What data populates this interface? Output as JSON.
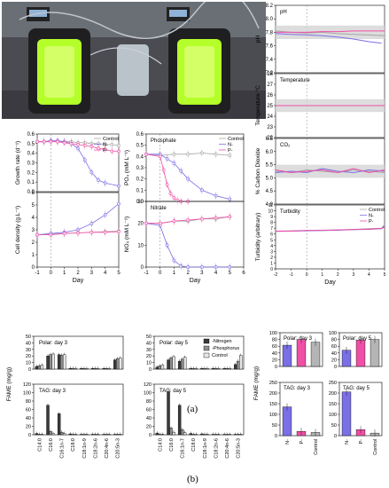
{
  "figure": {
    "caption_a": "(a)",
    "caption_b": "(b)"
  },
  "colors": {
    "control": "#a6a6a6",
    "n": "#7b6fe6",
    "p": "#f04fa6",
    "dark": "#3a3a3a",
    "photo_frame": "#2b2b2b",
    "algae": "#b4ff2a"
  },
  "chart_data": [
    {
      "id": "growth",
      "type": "line",
      "ylabel": "Growth rate (d⁻¹)",
      "xlabel": "",
      "ylim": [
        0.0,
        0.6
      ],
      "yticks": [
        "0.0",
        "0.1",
        "0.2",
        "0.3",
        "0.4",
        "0.5",
        "0.6"
      ],
      "xlim": [
        -1,
        5
      ],
      "xticks": [
        "-1",
        "0",
        "1",
        "2",
        "3",
        "4",
        "5"
      ],
      "legend": [
        "Control",
        "N-",
        "P-"
      ],
      "legend_position": "top-right",
      "series": [
        {
          "name": "Control",
          "x": [
            -1,
            -0.5,
            0,
            0.5,
            1,
            1.5,
            2,
            2.5,
            3,
            3.5,
            4,
            4.5,
            5
          ],
          "y": [
            0.52,
            0.52,
            0.53,
            0.52,
            0.52,
            0.52,
            0.51,
            0.51,
            0.5,
            0.5,
            0.49,
            0.49,
            0.48
          ]
        },
        {
          "name": "N-",
          "x": [
            -1,
            -0.5,
            0,
            0.5,
            1,
            1.5,
            2,
            2.5,
            3,
            3.5,
            4,
            5
          ],
          "y": [
            0.52,
            0.52,
            0.53,
            0.53,
            0.52,
            0.5,
            0.45,
            0.33,
            0.2,
            0.12,
            0.09,
            0.06
          ]
        },
        {
          "name": "P-",
          "x": [
            -1,
            -0.5,
            0,
            0.5,
            1,
            1.5,
            2,
            2.5,
            3,
            3.5,
            4,
            4.5,
            5
          ],
          "y": [
            0.52,
            0.52,
            0.52,
            0.52,
            0.51,
            0.5,
            0.49,
            0.48,
            0.47,
            0.45,
            0.44,
            0.42,
            0.42
          ]
        }
      ]
    },
    {
      "id": "density",
      "type": "line",
      "ylabel": "Cell density (g.L⁻¹)",
      "xlabel": "Day",
      "ylim": [
        0,
        6
      ],
      "yticks": [
        "0",
        "1",
        "2",
        "3",
        "4",
        "5",
        "6"
      ],
      "xlim": [
        -1,
        5
      ],
      "xticks": [
        "-1",
        "0",
        "1",
        "2",
        "3",
        "4",
        "5"
      ],
      "series": [
        {
          "name": "Control",
          "x": [
            -1,
            0,
            1,
            2,
            3,
            4,
            5
          ],
          "y": [
            2.6,
            2.65,
            2.7,
            2.75,
            2.8,
            2.85,
            2.9
          ]
        },
        {
          "name": "N-",
          "x": [
            -1,
            0,
            1,
            2,
            3,
            4,
            5
          ],
          "y": [
            2.6,
            2.7,
            2.8,
            3.0,
            3.5,
            4.2,
            5.1
          ]
        },
        {
          "name": "P-",
          "x": [
            -1,
            0,
            1,
            2,
            3,
            4,
            5
          ],
          "y": [
            2.6,
            2.6,
            2.7,
            2.75,
            2.8,
            2.8,
            2.85
          ]
        }
      ]
    },
    {
      "id": "phosphate",
      "type": "line",
      "ylabel": "PO₄ (mM L⁻¹)",
      "annotation": "Phosphate",
      "ylim": [
        0.0,
        0.6
      ],
      "yticks": [
        "0.0",
        "0.1",
        "0.2",
        "0.3",
        "0.4",
        "0.5",
        "0.6"
      ],
      "xlim": [
        -1,
        6
      ],
      "xticks": [
        "-1",
        "0",
        "1",
        "2",
        "3",
        "4",
        "5",
        "6"
      ],
      "legend": [
        "Control",
        "N-",
        "P-"
      ],
      "legend_position": "top-right",
      "series": [
        {
          "name": "Control",
          "x": [
            -1,
            0,
            1,
            2,
            3,
            4,
            5
          ],
          "y": [
            0.42,
            0.41,
            0.42,
            0.42,
            0.43,
            0.42,
            0.41
          ]
        },
        {
          "name": "N-",
          "x": [
            -1,
            0,
            0.5,
            1,
            1.5,
            2,
            3,
            4,
            5
          ],
          "y": [
            0.42,
            0.42,
            0.38,
            0.34,
            0.27,
            0.2,
            0.1,
            0.05,
            0.02
          ]
        },
        {
          "name": "P-",
          "x": [
            -1,
            0,
            0.25,
            0.5,
            0.75,
            1,
            1.25,
            1.5,
            2
          ],
          "y": [
            0.42,
            0.4,
            0.28,
            0.15,
            0.07,
            0.03,
            0.01,
            0.0,
            0.0
          ]
        }
      ]
    },
    {
      "id": "nitrate",
      "type": "line",
      "ylabel": "NO₃ (mM L⁻¹)",
      "xlabel": "Day",
      "annotation": "Nitrate",
      "ylim": [
        0,
        30
      ],
      "yticks": [
        "0",
        "10",
        "20",
        "30"
      ],
      "xlim": [
        -1,
        6
      ],
      "xticks": [
        "-1",
        "0",
        "1",
        "2",
        "3",
        "4",
        "5",
        "6"
      ],
      "series": [
        {
          "name": "Control",
          "x": [
            -1,
            0,
            1,
            2,
            3,
            4,
            5
          ],
          "y": [
            20,
            20,
            21,
            21,
            22,
            22,
            23
          ]
        },
        {
          "name": "N-",
          "x": [
            -1,
            0,
            0.5,
            1,
            1.5,
            2,
            3,
            4,
            5
          ],
          "y": [
            20,
            19,
            10,
            3,
            0.5,
            0,
            0,
            0,
            0
          ]
        },
        {
          "name": "P-",
          "x": [
            -1,
            0,
            1,
            2,
            3,
            4,
            5
          ],
          "y": [
            20,
            20,
            21,
            21.5,
            22,
            22.5,
            23
          ]
        }
      ]
    },
    {
      "id": "ph",
      "type": "line",
      "ylabel": "pH",
      "annotation": "pH",
      "ylim": [
        7.2,
        8.2
      ],
      "yticks": [
        "7.2",
        "7.4",
        "7.6",
        "7.8",
        "8.0",
        "8.2"
      ],
      "series": [
        {
          "name": "Control",
          "x": [
            -2,
            -1,
            0,
            1,
            2,
            3,
            4,
            5
          ],
          "y": [
            7.82,
            7.8,
            7.79,
            7.8,
            7.78,
            7.77,
            7.76,
            7.75
          ]
        },
        {
          "name": "N-",
          "x": [
            -2,
            -1,
            0,
            1,
            2,
            3,
            4,
            4.8
          ],
          "y": [
            7.78,
            7.77,
            7.76,
            7.75,
            7.73,
            7.7,
            7.66,
            7.64
          ]
        },
        {
          "name": "P-",
          "x": [
            -2,
            -1,
            0,
            1,
            2,
            3,
            4,
            5
          ],
          "y": [
            7.8,
            7.8,
            7.8,
            7.81,
            7.81,
            7.82,
            7.82,
            7.82
          ]
        }
      ]
    },
    {
      "id": "temperature",
      "type": "line",
      "ylabel": "Temperature °C",
      "annotation": "Temperature",
      "ylim": [
        22,
        28
      ],
      "yticks": [
        "22",
        "23",
        "24",
        "25",
        "26",
        "27",
        "28"
      ],
      "series": [
        {
          "name": "Control",
          "x": [
            -2,
            5
          ],
          "y": [
            25.0,
            25.0
          ]
        },
        {
          "name": "N-",
          "x": [
            -2,
            5
          ],
          "y": [
            25.0,
            25.0
          ]
        },
        {
          "name": "P-",
          "x": [
            -2,
            5
          ],
          "y": [
            25.0,
            25.0
          ]
        }
      ]
    },
    {
      "id": "co2",
      "type": "line",
      "ylabel": "% Carbon Dioxide",
      "annotation": "CO₂",
      "ylim": [
        4.0,
        6.5
      ],
      "yticks": [
        "4.0",
        "4.5",
        "5.0",
        "5.5",
        "6.0",
        "6.5"
      ],
      "series": [
        {
          "name": "Control",
          "x": [
            -2,
            -1,
            0,
            1,
            2,
            3,
            4,
            5
          ],
          "y": [
            5.25,
            5.2,
            5.3,
            5.25,
            5.2,
            5.3,
            5.25,
            5.2
          ]
        },
        {
          "name": "N-",
          "x": [
            -2,
            -1,
            0,
            1,
            2,
            3,
            4,
            5
          ],
          "y": [
            5.2,
            5.25,
            5.2,
            5.35,
            5.25,
            5.2,
            5.3,
            5.25
          ]
        },
        {
          "name": "P-",
          "x": [
            -2,
            -1,
            0,
            1,
            2,
            3,
            4,
            5
          ],
          "y": [
            5.3,
            5.2,
            5.25,
            5.3,
            5.2,
            5.35,
            5.2,
            5.3
          ]
        }
      ]
    },
    {
      "id": "turbidity",
      "type": "line",
      "ylabel": "Turbidity (arbitrary)",
      "annotation": "Turbidity",
      "xlabel": "Day",
      "ylim": [
        0,
        11
      ],
      "yticks": [
        "0",
        "1",
        "2",
        "3",
        "4",
        "5",
        "6",
        "7",
        "8",
        "9",
        "10",
        "11"
      ],
      "xlim": [
        -2,
        5
      ],
      "xticks": [
        "-2",
        "-1",
        "0",
        "1",
        "2",
        "3",
        "4",
        "5"
      ],
      "legend": [
        "Control",
        "N-",
        "P-"
      ],
      "legend_position": "top-right",
      "series": [
        {
          "name": "Control",
          "x": [
            -2,
            -1,
            0,
            1,
            2,
            3,
            4,
            4.8,
            5
          ],
          "y": [
            6.5,
            6.55,
            6.6,
            6.6,
            6.7,
            6.8,
            6.9,
            7.0,
            7.6
          ]
        },
        {
          "name": "N-",
          "x": [
            -2,
            -1,
            0,
            1,
            2,
            3,
            4,
            4.8,
            5
          ],
          "y": [
            6.45,
            6.5,
            6.55,
            6.6,
            6.65,
            6.75,
            6.8,
            6.9,
            7.4
          ]
        },
        {
          "name": "P-",
          "x": [
            -2,
            -1,
            0,
            1,
            2,
            3,
            4,
            4.8,
            5
          ],
          "y": [
            6.5,
            6.5,
            6.6,
            6.65,
            6.7,
            6.75,
            6.85,
            6.95,
            7.2
          ]
        }
      ]
    },
    {
      "id": "fame",
      "type": "bar",
      "ylabel": "FAME (mg/g)",
      "categories": [
        "C14:0",
        "C16:0",
        "C16:1n-7",
        "C18:0",
        "C18:1n-9",
        "C18:2n-6",
        "C20:4n-6",
        "C20:5n-3"
      ],
      "legend": [
        "-Nitrogen",
        "-Phosphorus",
        "Control"
      ],
      "panels": [
        {
          "label": "Polar: day 3",
          "ylim": [
            0,
            50
          ],
          "yticks": [
            "0",
            "10",
            "20",
            "30",
            "40",
            "50"
          ],
          "series": [
            {
              "name": "-Nitrogen",
              "values": [
                4,
                20,
                22,
                1,
                1,
                1,
                1,
                14
              ]
            },
            {
              "name": "-Phosphorus",
              "values": [
                5,
                22,
                21,
                1,
                1,
                1,
                1,
                16
              ]
            },
            {
              "name": "Control",
              "values": [
                6,
                23,
                22,
                1,
                1,
                1,
                1,
                17
              ]
            }
          ]
        },
        {
          "label": "Polar: day 5",
          "ylim": [
            0,
            50
          ],
          "yticks": [
            "0",
            "10",
            "20",
            "30",
            "40",
            "50"
          ],
          "series": [
            {
              "name": "-Nitrogen",
              "values": [
                3,
                14,
                12,
                1,
                1,
                1,
                1,
                7
              ]
            },
            {
              "name": "-Phosphorus",
              "values": [
                5,
                17,
                15,
                1,
                1,
                1,
                1,
                12
              ]
            },
            {
              "name": "Control",
              "values": [
                6,
                19,
                18,
                1,
                1,
                1,
                1,
                21
              ]
            }
          ]
        },
        {
          "label": "TAG: day 3",
          "ylim": [
            0,
            120
          ],
          "yticks": [
            "0",
            "20",
            "40",
            "60",
            "80",
            "100",
            "120"
          ],
          "series": [
            {
              "name": "-Nitrogen",
              "values": [
                3,
                70,
                50,
                2,
                1,
                1,
                1,
                1
              ]
            },
            {
              "name": "-Phosphorus",
              "values": [
                1,
                8,
                6,
                1,
                1,
                1,
                1,
                1
              ]
            },
            {
              "name": "Control",
              "values": [
                1,
                3,
                3,
                1,
                1,
                1,
                1,
                1
              ]
            }
          ]
        },
        {
          "label": "TAG: day 5",
          "ylim": [
            0,
            120
          ],
          "yticks": [
            "0",
            "20",
            "40",
            "60",
            "80",
            "100",
            "120"
          ],
          "series": [
            {
              "name": "-Nitrogen",
              "values": [
                4,
                102,
                70,
                3,
                2,
                1,
                1,
                1
              ]
            },
            {
              "name": "-Phosphorus",
              "values": [
                1,
                16,
                12,
                1,
                1,
                1,
                1,
                1
              ]
            },
            {
              "name": "Control",
              "values": [
                1,
                6,
                5,
                1,
                1,
                1,
                1,
                1
              ]
            }
          ]
        }
      ]
    },
    {
      "id": "fame_total",
      "type": "bar",
      "ylabel": "FAME (mg/g)",
      "categories": [
        "N-",
        "P-",
        "Control"
      ],
      "panels": [
        {
          "label": "Polar: day 3",
          "ylim": [
            0,
            100
          ],
          "yticks": [
            "0",
            "20",
            "40",
            "60",
            "80",
            "100"
          ],
          "values": [
            63,
            80,
            72
          ]
        },
        {
          "label": "Polar: day 5",
          "ylim": [
            0,
            100
          ],
          "yticks": [
            "0",
            "20",
            "40",
            "60",
            "80",
            "100"
          ],
          "values": [
            48,
            78,
            80
          ]
        },
        {
          "label": "TAG: day 3",
          "ylim": [
            0,
            250
          ],
          "yticks": [
            "0",
            "50",
            "100",
            "150",
            "200",
            "250"
          ],
          "values": [
            135,
            20,
            15
          ]
        },
        {
          "label": "TAG: day 5",
          "ylim": [
            0,
            250
          ],
          "yticks": [
            "0",
            "50",
            "100",
            "150",
            "200",
            "250"
          ],
          "values": [
            205,
            28,
            12
          ]
        }
      ]
    }
  ]
}
